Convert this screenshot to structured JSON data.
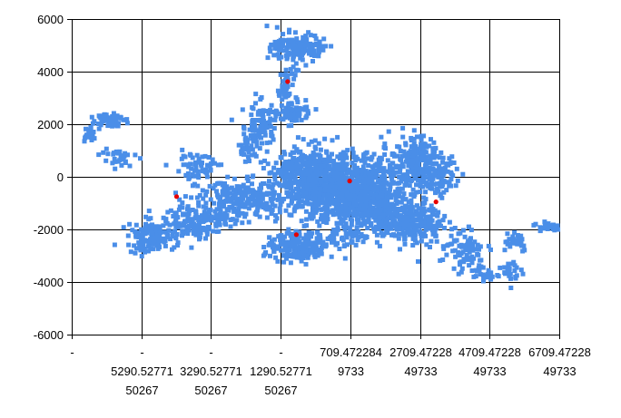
{
  "chart_data": {
    "type": "scatter",
    "title": "",
    "xlabel": "",
    "ylabel": "",
    "grid": true,
    "legend": "none",
    "xlim": [
      -7290.5277150267,
      6709.4722849733
    ],
    "ylim": [
      -6000,
      6000
    ],
    "x_ticks": [
      {
        "value": -7290.5277150267,
        "lines": [
          "-",
          "",
          ""
        ]
      },
      {
        "value": -5290.5277150267,
        "lines": [
          "-",
          "5290.52771",
          "50267"
        ]
      },
      {
        "value": -3290.5277150267,
        "lines": [
          "-",
          "3290.52771",
          "50267"
        ]
      },
      {
        "value": -1290.5277150267,
        "lines": [
          "-",
          "1290.52771",
          "50267"
        ]
      },
      {
        "value": 709.4722849733,
        "lines": [
          "709.472284",
          "9733",
          ""
        ]
      },
      {
        "value": 2709.4722849733,
        "lines": [
          "2709.47228",
          "49733",
          ""
        ]
      },
      {
        "value": 4709.4722849733,
        "lines": [
          "4709.47228",
          "49733",
          ""
        ]
      },
      {
        "value": 6709.4722849733,
        "lines": [
          "6709.47228",
          "49733",
          ""
        ]
      }
    ],
    "y_ticks": [
      {
        "value": 6000,
        "label": "6000"
      },
      {
        "value": 4000,
        "label": "4000"
      },
      {
        "value": 2000,
        "label": "2000"
      },
      {
        "value": 0,
        "label": "0"
      },
      {
        "value": -2000,
        "label": "-2000"
      },
      {
        "value": -4000,
        "label": "-4000"
      },
      {
        "value": -6000,
        "label": "-6000"
      }
    ],
    "series": [
      {
        "color": "#4a8ee8",
        "marker": "square",
        "clusters": [
          {
            "x": 700,
            "y": -500,
            "sx": 1200,
            "sy": 900,
            "n": 900
          },
          {
            "x": -200,
            "y": -200,
            "sx": 700,
            "sy": 800,
            "n": 260
          },
          {
            "x": -800,
            "y": 300,
            "sx": 450,
            "sy": 400,
            "n": 140
          },
          {
            "x": -2300,
            "y": -900,
            "sx": 900,
            "sy": 500,
            "n": 260
          },
          {
            "x": -3700,
            "y": -1700,
            "sx": 600,
            "sy": 450,
            "n": 160
          },
          {
            "x": -5000,
            "y": -2300,
            "sx": 450,
            "sy": 400,
            "n": 120
          },
          {
            "x": -3700,
            "y": 400,
            "sx": 500,
            "sy": 350,
            "n": 60
          },
          {
            "x": -6200,
            "y": 2200,
            "sx": 250,
            "sy": 180,
            "n": 70
          },
          {
            "x": -6800,
            "y": 1600,
            "sx": 120,
            "sy": 250,
            "n": 25
          },
          {
            "x": -6000,
            "y": 700,
            "sx": 350,
            "sy": 300,
            "n": 30
          },
          {
            "x": -800,
            "y": 4900,
            "sx": 500,
            "sy": 350,
            "n": 150
          },
          {
            "x": -1100,
            "y": 3500,
            "sx": 180,
            "sy": 650,
            "n": 60
          },
          {
            "x": -900,
            "y": 2400,
            "sx": 300,
            "sy": 250,
            "n": 70
          },
          {
            "x": -1900,
            "y": 2000,
            "sx": 350,
            "sy": 600,
            "n": 80
          },
          {
            "x": -2200,
            "y": 1100,
            "sx": 250,
            "sy": 400,
            "n": 40
          },
          {
            "x": 2600,
            "y": 600,
            "sx": 500,
            "sy": 650,
            "n": 180
          },
          {
            "x": 3200,
            "y": 100,
            "sx": 400,
            "sy": 450,
            "n": 80
          },
          {
            "x": 2500,
            "y": -1700,
            "sx": 550,
            "sy": 550,
            "n": 220
          },
          {
            "x": 1600,
            "y": -1400,
            "sx": 550,
            "sy": 450,
            "n": 160
          },
          {
            "x": -800,
            "y": -2800,
            "sx": 600,
            "sy": 300,
            "n": 140
          },
          {
            "x": -1000,
            "y": -2300,
            "sx": 350,
            "sy": 200,
            "n": 40
          },
          {
            "x": 300,
            "y": -2400,
            "sx": 600,
            "sy": 300,
            "n": 60
          },
          {
            "x": 3900,
            "y": -2600,
            "sx": 500,
            "sy": 550,
            "n": 70
          },
          {
            "x": 4200,
            "y": -3400,
            "sx": 250,
            "sy": 300,
            "n": 20
          },
          {
            "x": 4600,
            "y": -3750,
            "sx": 250,
            "sy": 120,
            "n": 18
          },
          {
            "x": 5400,
            "y": -3600,
            "sx": 200,
            "sy": 350,
            "n": 25
          },
          {
            "x": 5400,
            "y": -2400,
            "sx": 300,
            "sy": 300,
            "n": 30
          },
          {
            "x": 6400,
            "y": -1900,
            "sx": 280,
            "sy": 150,
            "n": 25
          }
        ]
      },
      {
        "color": "#e60000",
        "marker": "circle",
        "points": [
          {
            "x": -4280,
            "y": -750
          },
          {
            "x": -1090,
            "y": 3620
          },
          {
            "x": -840,
            "y": -2200
          },
          {
            "x": 690,
            "y": -160
          },
          {
            "x": 3170,
            "y": -950
          }
        ]
      }
    ]
  }
}
